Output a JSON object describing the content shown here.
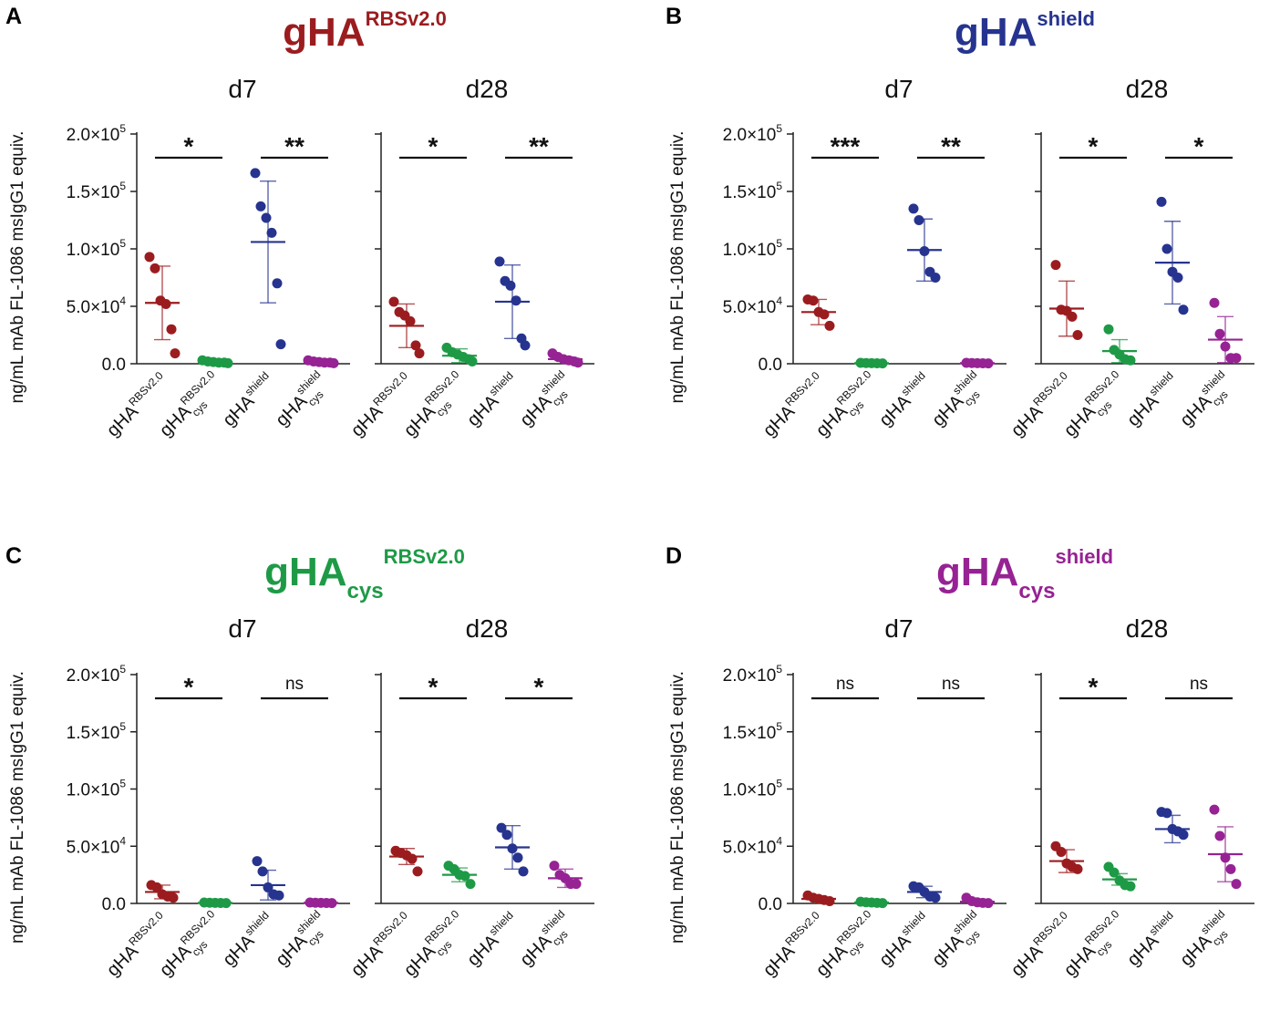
{
  "figure": {
    "y_axis_label": "ng/mL mAb FL-1086 msIgG1 equiv.",
    "y_ticks": [
      {
        "value": 0,
        "label": "0.0"
      },
      {
        "value": 50000,
        "label": "5.0×10",
        "exp": "4"
      },
      {
        "value": 100000,
        "label": "1.0×10",
        "exp": "5"
      },
      {
        "value": 150000,
        "label": "1.5×10",
        "exp": "5"
      },
      {
        "value": 200000,
        "label": "2.0×10",
        "exp": "5"
      }
    ],
    "groups": [
      {
        "key": "rbs",
        "base": "gHA",
        "sub": "",
        "sup": "RBSv2.0",
        "color": "#9b1c1f"
      },
      {
        "key": "cys_rbs",
        "base": "gHA",
        "sub": "cys",
        "sup": "RBSv2.0",
        "color": "#1e9a46"
      },
      {
        "key": "shield",
        "base": "gHA",
        "sub": "",
        "sup": "shield",
        "color": "#26348f"
      },
      {
        "key": "cys_shield",
        "base": "gHA",
        "sub": "cys",
        "sup": "shield",
        "color": "#962294"
      }
    ]
  },
  "chart_data": [
    {
      "type": "scatter",
      "panel_letter": "A",
      "title": {
        "base": "gHA",
        "sub": "",
        "sup": "RBSv2.0",
        "color": "#9b1c1f"
      },
      "ylim": [
        0,
        200000
      ],
      "subplots": [
        {
          "name": "d7",
          "comparisons": [
            "*",
            "**"
          ],
          "series": [
            {
              "group": "rbs",
              "mean": 53000,
              "sd": 32000,
              "values": [
                93000,
                83000,
                55000,
                52000,
                30000,
                9000
              ]
            },
            {
              "group": "cys_rbs",
              "mean": 1500,
              "sd": 600,
              "values": [
                3000,
                2000,
                1500,
                1000,
                1000,
                500
              ]
            },
            {
              "group": "shield",
              "mean": 106000,
              "sd": 53000,
              "values": [
                166000,
                137000,
                127000,
                114000,
                70000,
                17000
              ]
            },
            {
              "group": "cys_shield",
              "mean": 1500,
              "sd": 600,
              "values": [
                3000,
                2000,
                1500,
                1000,
                1000,
                500
              ]
            }
          ]
        },
        {
          "name": "d28",
          "comparisons": [
            "*",
            "**"
          ],
          "series": [
            {
              "group": "rbs",
              "mean": 33000,
              "sd": 19000,
              "values": [
                54000,
                45000,
                42000,
                37000,
                16000,
                9000
              ]
            },
            {
              "group": "cys_rbs",
              "mean": 7000,
              "sd": 6000,
              "values": [
                14000,
                10000,
                8000,
                6000,
                4000,
                2000
              ]
            },
            {
              "group": "shield",
              "mean": 54000,
              "sd": 32000,
              "values": [
                89000,
                72000,
                68000,
                55000,
                22000,
                16000
              ]
            },
            {
              "group": "cys_shield",
              "mean": 4000,
              "sd": 2000,
              "values": [
                9000,
                6000,
                4000,
                3000,
                2000,
                1000
              ]
            }
          ]
        }
      ]
    },
    {
      "type": "scatter",
      "panel_letter": "B",
      "title": {
        "base": "gHA",
        "sub": "",
        "sup": "shield",
        "color": "#26348f"
      },
      "ylim": [
        0,
        200000
      ],
      "subplots": [
        {
          "name": "d7",
          "comparisons": [
            "***",
            "**"
          ],
          "series": [
            {
              "group": "rbs",
              "mean": 45000,
              "sd": 11000,
              "values": [
                56000,
                55000,
                45000,
                43000,
                33000
              ]
            },
            {
              "group": "cys_rbs",
              "mean": 500,
              "sd": 300,
              "values": [
                800,
                600,
                500,
                400,
                300
              ]
            },
            {
              "group": "shield",
              "mean": 99000,
              "sd": 27000,
              "values": [
                135000,
                125000,
                98000,
                80000,
                75000
              ]
            },
            {
              "group": "cys_shield",
              "mean": 500,
              "sd": 300,
              "values": [
                800,
                600,
                500,
                400,
                300
              ]
            }
          ]
        },
        {
          "name": "d28",
          "comparisons": [
            "*",
            "*"
          ],
          "series": [
            {
              "group": "rbs",
              "mean": 48000,
              "sd": 24000,
              "values": [
                86000,
                47000,
                46000,
                41000,
                25000
              ]
            },
            {
              "group": "cys_rbs",
              "mean": 11000,
              "sd": 10000,
              "values": [
                30000,
                12000,
                8000,
                4000,
                3000
              ]
            },
            {
              "group": "shield",
              "mean": 88000,
              "sd": 36000,
              "values": [
                141000,
                100000,
                80000,
                75000,
                47000
              ]
            },
            {
              "group": "cys_shield",
              "mean": 21000,
              "sd": 20000,
              "values": [
                53000,
                26000,
                15000,
                5000,
                5000
              ]
            }
          ]
        }
      ]
    },
    {
      "type": "scatter",
      "panel_letter": "C",
      "title": {
        "base": "gHA",
        "sub": "cys",
        "sup": "RBSv2.0",
        "color": "#1e9a46"
      },
      "ylim": [
        0,
        200000
      ],
      "subplots": [
        {
          "name": "d7",
          "comparisons": [
            "*",
            "ns"
          ],
          "series": [
            {
              "group": "rbs",
              "mean": 10000,
              "sd": 6000,
              "values": [
                16000,
                14000,
                8000,
                6000,
                5000
              ]
            },
            {
              "group": "cys_rbs",
              "mean": 500,
              "sd": 300,
              "values": [
                800,
                600,
                500,
                400,
                300
              ]
            },
            {
              "group": "shield",
              "mean": 16000,
              "sd": 13000,
              "values": [
                37000,
                28000,
                14000,
                8000,
                7000
              ]
            },
            {
              "group": "cys_shield",
              "mean": 500,
              "sd": 300,
              "values": [
                800,
                600,
                500,
                400,
                300
              ]
            }
          ]
        },
        {
          "name": "d28",
          "comparisons": [
            "*",
            "*"
          ],
          "series": [
            {
              "group": "rbs",
              "mean": 41000,
              "sd": 7000,
              "values": [
                46000,
                44000,
                42000,
                39000,
                28000
              ]
            },
            {
              "group": "cys_rbs",
              "mean": 25000,
              "sd": 6000,
              "values": [
                33000,
                30000,
                25000,
                24000,
                17000
              ]
            },
            {
              "group": "shield",
              "mean": 49000,
              "sd": 19000,
              "values": [
                66000,
                60000,
                48000,
                40000,
                28000
              ]
            },
            {
              "group": "cys_shield",
              "mean": 22000,
              "sd": 8000,
              "values": [
                33000,
                25000,
                22000,
                17000,
                17000
              ]
            }
          ]
        }
      ]
    },
    {
      "type": "scatter",
      "panel_letter": "D",
      "title": {
        "base": "gHA",
        "sub": "cys",
        "sup": "shield",
        "color": "#962294"
      },
      "ylim": [
        0,
        200000
      ],
      "subplots": [
        {
          "name": "d7",
          "comparisons": [
            "ns",
            "ns"
          ],
          "series": [
            {
              "group": "rbs",
              "mean": 4000,
              "sd": 2000,
              "values": [
                7000,
                5000,
                4000,
                3000,
                2000
              ]
            },
            {
              "group": "cys_rbs",
              "mean": 800,
              "sd": 500,
              "values": [
                1500,
                1000,
                800,
                500,
                300
              ]
            },
            {
              "group": "shield",
              "mean": 10000,
              "sd": 5000,
              "values": [
                15000,
                14000,
                10000,
                6000,
                5000
              ]
            },
            {
              "group": "cys_shield",
              "mean": 1500,
              "sd": 1000,
              "values": [
                5000,
                2000,
                1000,
                500,
                300
              ]
            }
          ]
        },
        {
          "name": "d28",
          "comparisons": [
            "*",
            "ns"
          ],
          "series": [
            {
              "group": "rbs",
              "mean": 37000,
              "sd": 10000,
              "values": [
                50000,
                45000,
                35000,
                32000,
                30000
              ]
            },
            {
              "group": "cys_rbs",
              "mean": 21000,
              "sd": 5000,
              "values": [
                32000,
                27000,
                20000,
                16000,
                15000
              ]
            },
            {
              "group": "shield",
              "mean": 65000,
              "sd": 12000,
              "values": [
                80000,
                79000,
                65000,
                63000,
                60000
              ]
            },
            {
              "group": "cys_shield",
              "mean": 43000,
              "sd": 24000,
              "values": [
                82000,
                59000,
                40000,
                30000,
                17000
              ]
            }
          ]
        }
      ]
    }
  ]
}
